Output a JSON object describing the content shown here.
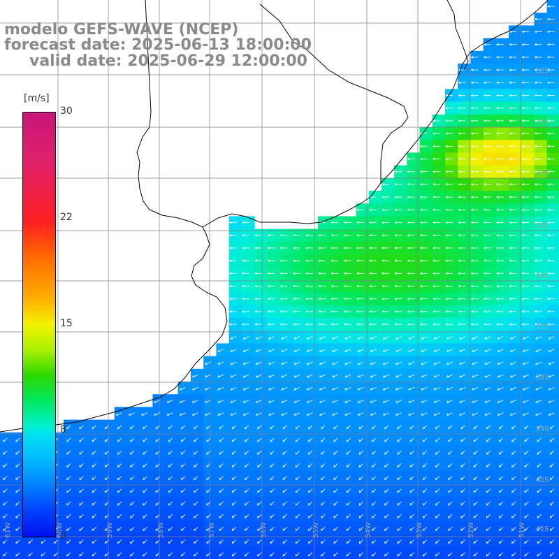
{
  "title": {
    "line1": "modelo GEFS-WAVE (NCEP)",
    "line2": "forecast date: 2025-06-13 18:00:00",
    "line3": "valid date: 2025-06-29 12:00:00"
  },
  "colorbar": {
    "unit": "[m/s]",
    "ticks": [
      "30",
      "22",
      "15",
      "8",
      "0"
    ],
    "min": 0,
    "max": 30
  },
  "grid": {
    "lat_labels": [
      "32S",
      "33S",
      "34S",
      "35S",
      "36S",
      "37S",
      "38S",
      "39S",
      "40S",
      "41S"
    ],
    "lon_labels": [
      "61W",
      "60W",
      "59W",
      "58W",
      "57W",
      "56W",
      "55W",
      "54W",
      "53W",
      "52W",
      "51W"
    ]
  },
  "map": {
    "region": "Rio de la Plata estuary and South Atlantic off Argentina and Uruguay",
    "field": "wind speed",
    "arrow_color": "#ffffff",
    "coastline_color": "#000000",
    "grid_color": "#808080"
  }
}
